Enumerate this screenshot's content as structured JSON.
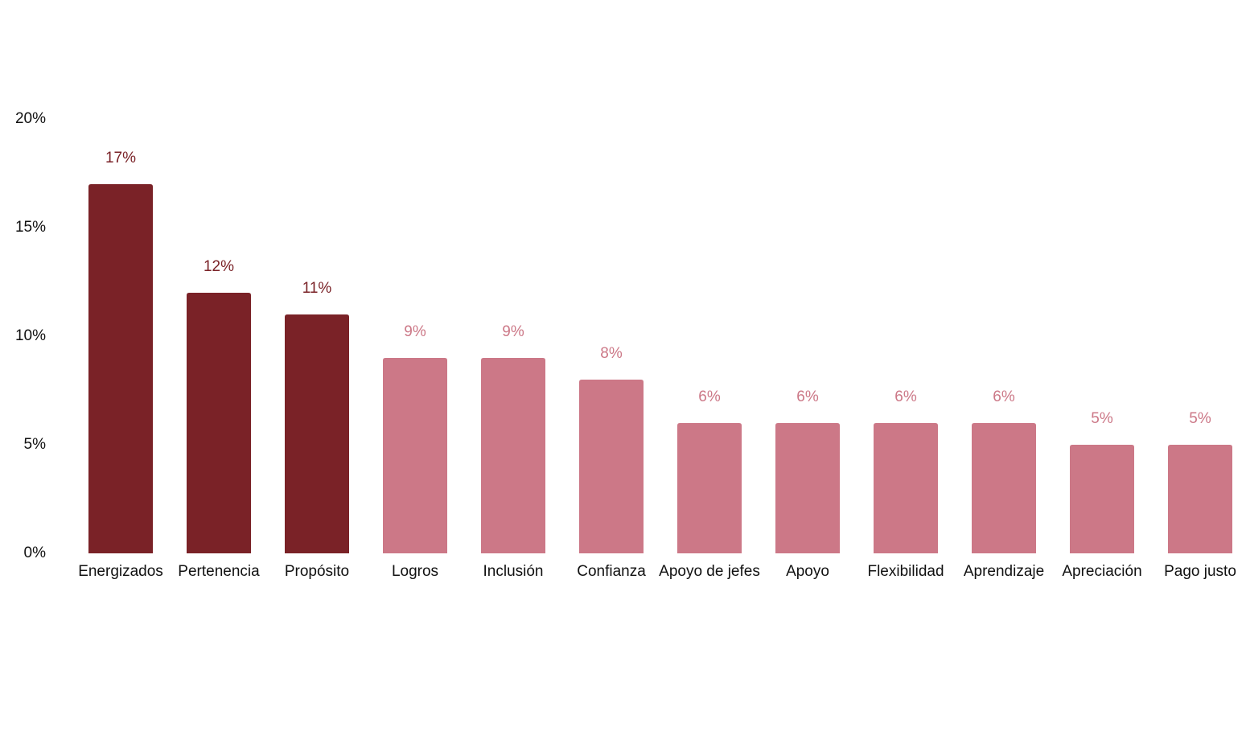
{
  "chart_data": {
    "type": "bar",
    "categories": [
      "Energizados",
      "Pertenencia",
      "Propósito",
      "Logros",
      "Inclusión",
      "Confianza",
      "Apoyo de jefes",
      "Apoyo",
      "Flexibilidad",
      "Aprendizaje",
      "Apreciación",
      "Pago justo"
    ],
    "values": [
      17,
      12,
      11,
      9,
      9,
      8,
      6,
      6,
      6,
      6,
      5,
      5
    ],
    "value_labels": [
      "17%",
      "12%",
      "11%",
      "9%",
      "9%",
      "8%",
      "6%",
      "6%",
      "6%",
      "6%",
      "5%",
      "5%"
    ],
    "colors": [
      "#7a2227",
      "#7a2227",
      "#7a2227",
      "#cc7887",
      "#cc7887",
      "#cc7887",
      "#cc7887",
      "#cc7887",
      "#cc7887",
      "#cc7887",
      "#cc7887",
      "#cc7887"
    ],
    "ylim": [
      0,
      20
    ],
    "yticks": [
      {
        "value": 0,
        "label": "0%"
      },
      {
        "value": 5,
        "label": "5%"
      },
      {
        "value": 10,
        "label": "10%"
      },
      {
        "value": 15,
        "label": "15%"
      },
      {
        "value": 20,
        "label": "20%"
      }
    ],
    "grid": false
  }
}
